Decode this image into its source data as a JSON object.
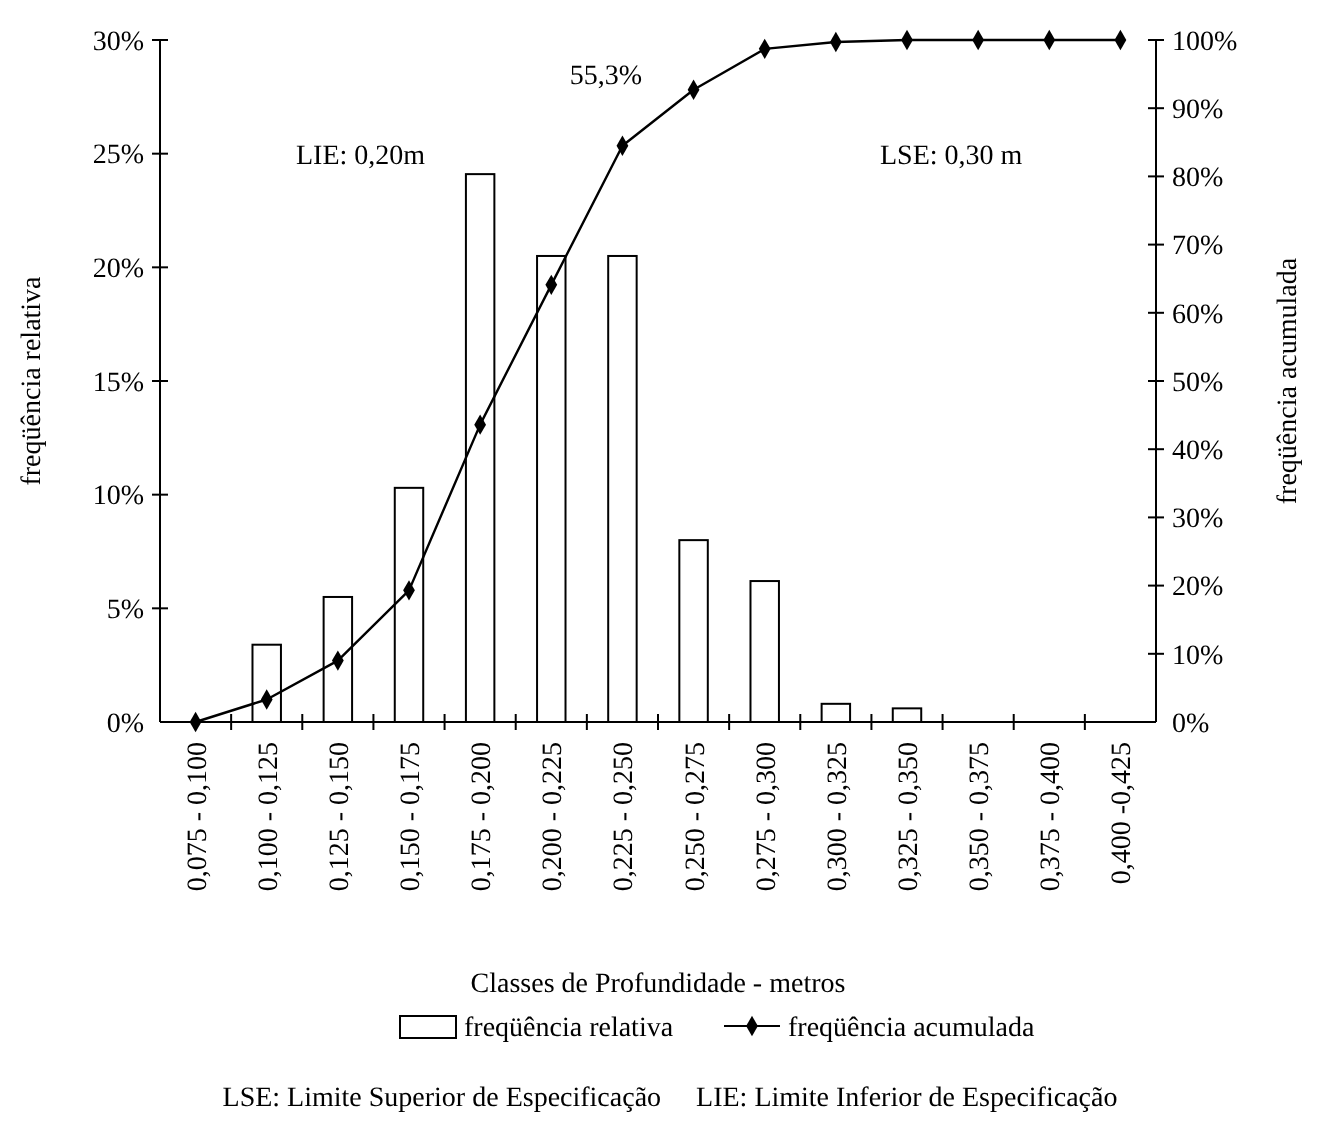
{
  "chart_data": {
    "type": "bar",
    "xlabel": "Classes de Profundidade - metros",
    "ylabel": "freqüência relativa",
    "y2label": "freqüência acumulada",
    "categories": [
      "0,075 - 0,100",
      "0,100 - 0,125",
      "0,125 - 0,150",
      "0,150 - 0,175",
      "0,175 - 0,200",
      "0,200 - 0,225",
      "0,225 - 0,250",
      "0,250 - 0,275",
      "0,275 - 0,300",
      "0,300 - 0,325",
      "0,325 - 0,350",
      "0,350 - 0,375",
      "0,375 - 0,400",
      "0,400 -0,425"
    ],
    "series": [
      {
        "name": "freqüência relativa",
        "color": "#ffffff",
        "values": [
          0,
          3.4,
          5.5,
          10.3,
          24.1,
          20.5,
          20.5,
          8.0,
          6.2,
          0.8,
          0.6,
          0,
          0,
          0
        ]
      },
      {
        "name": "freqüência acumulada",
        "type": "line",
        "axis": "y2",
        "color": "#000000",
        "marker": "diamond",
        "values": [
          0,
          3.3,
          9.0,
          19.3,
          43.6,
          64.1,
          84.5,
          92.7,
          98.7,
          99.7,
          100,
          100,
          100,
          100
        ]
      }
    ],
    "ylim": [
      0,
      30
    ],
    "yticks": [
      {
        "value": 0,
        "label": "0%"
      },
      {
        "value": 5,
        "label": "5%"
      },
      {
        "value": 10,
        "label": "10%"
      },
      {
        "value": 15,
        "label": "15%"
      },
      {
        "value": 20,
        "label": "20%"
      },
      {
        "value": 25,
        "label": "25%"
      },
      {
        "value": 30,
        "label": "30%"
      }
    ],
    "y2lim": [
      0,
      100
    ],
    "y2ticks": [
      {
        "value": 0,
        "label": "0%"
      },
      {
        "value": 10,
        "label": "10%"
      },
      {
        "value": 20,
        "label": "20%"
      },
      {
        "value": 30,
        "label": "30%"
      },
      {
        "value": 40,
        "label": "40%"
      },
      {
        "value": 50,
        "label": "50%"
      },
      {
        "value": 60,
        "label": "60%"
      },
      {
        "value": 70,
        "label": "70%"
      },
      {
        "value": 80,
        "label": "80%"
      },
      {
        "value": 90,
        "label": "90%"
      },
      {
        "value": 100,
        "label": "100%"
      }
    ],
    "annotations": [
      "LIE: 0,20m",
      "55,3%",
      "LSE: 0,30 m",
      "LSE: Limite Superior de Especificação     LIE: Limite Inferior de Especificação"
    ],
    "legend": "bottom",
    "grid": false
  }
}
